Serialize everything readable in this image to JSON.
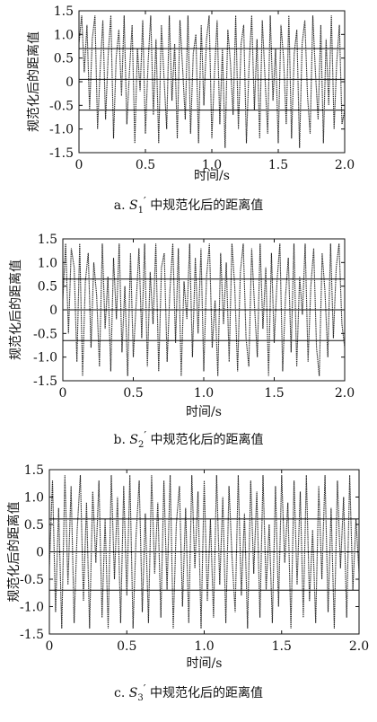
{
  "chart_data": [
    {
      "type": "line",
      "ylabel": "规范化后的距离值",
      "xlabel": "时间/s",
      "caption": {
        "prefix": "a.",
        "sym": "S",
        "sub": "1",
        "prime": "′",
        "text": "中规范化后的距离值"
      },
      "xlim": [
        0,
        2.0
      ],
      "ylim": [
        -1.5,
        1.5
      ],
      "xticks": [
        "0",
        "0.5",
        "1.0",
        "1.5",
        "2.0"
      ],
      "yticks": [
        "1.5",
        "1.0",
        "0.5",
        "0",
        "-0.5",
        "-1.0",
        "-1.5"
      ],
      "hlines": [
        0.7,
        0.05,
        -0.6
      ],
      "grid": false,
      "series": [
        {
          "x": [
            0,
            0.02,
            0.04,
            0.06,
            0.08,
            0.1,
            0.12,
            0.14,
            0.16,
            0.18,
            0.2,
            0.22,
            0.24,
            0.26,
            0.28,
            0.3,
            0.32,
            0.34,
            0.36,
            0.38,
            0.4,
            0.42,
            0.44,
            0.46,
            0.48,
            0.5,
            0.52,
            0.54,
            0.56,
            0.58,
            0.6,
            0.62,
            0.64,
            0.66,
            0.68,
            0.7,
            0.72,
            0.74,
            0.76,
            0.78,
            0.8,
            0.82,
            0.84,
            0.86,
            0.88,
            0.9,
            0.92,
            0.94,
            0.96,
            0.98,
            1.0,
            1.02,
            1.04,
            1.06,
            1.08,
            1.1,
            1.12,
            1.14,
            1.16,
            1.18,
            1.2,
            1.22,
            1.24,
            1.26,
            1.28,
            1.3,
            1.32,
            1.34,
            1.36,
            1.38,
            1.4,
            1.42,
            1.44,
            1.46,
            1.48,
            1.5,
            1.52,
            1.54,
            1.56,
            1.58,
            1.6,
            1.62,
            1.64,
            1.66,
            1.68,
            1.7,
            1.72,
            1.74,
            1.76,
            1.78,
            1.8,
            1.82,
            1.84,
            1.86,
            1.88,
            1.9,
            1.92,
            1.94,
            1.96,
            1.98,
            2.0
          ],
          "y": [
            0.8,
            1.4,
            0.2,
            1.2,
            -0.6,
            0.9,
            1.4,
            -1.0,
            0.3,
            1.3,
            -0.8,
            0.6,
            1.4,
            -1.2,
            0.5,
            1.1,
            -0.3,
            1.4,
            -0.9,
            0.2,
            1.2,
            -1.3,
            0.7,
            -0.2,
            1.3,
            -1.1,
            0.4,
            1.4,
            -0.7,
            0.9,
            -1.3,
            1.2,
            0.1,
            -1.0,
            1.4,
            -0.4,
            0.8,
            -1.2,
            1.3,
            0.3,
            -0.8,
            1.4,
            -1.1,
            0.6,
            1.0,
            -1.3,
            1.2,
            -0.5,
            0.9,
            1.4,
            -1.2,
            0.2,
            1.3,
            -0.9,
            0.7,
            -1.4,
            1.1,
            0.4,
            -0.7,
            1.4,
            -1.0,
            0.8,
            1.2,
            -1.3,
            0.3,
            1.4,
            -0.6,
            0.9,
            -1.2,
            1.3,
            0.1,
            -1.1,
            1.4,
            -0.4,
            0.7,
            -1.3,
            1.2,
            0.5,
            -0.9,
            1.4,
            -1.2,
            0.6,
            1.1,
            -1.4,
            0.8,
            1.3,
            -0.3,
            -1.1,
            1.4,
            0.2,
            -0.8,
            1.2,
            -1.3,
            0.9,
            -0.5,
            1.4,
            -1.0,
            0.4,
            1.2,
            -0.9,
            -0.6
          ]
        }
      ]
    },
    {
      "type": "line",
      "ylabel": "规范化后的距离值",
      "xlabel": "时间/s",
      "caption": {
        "prefix": "b.",
        "sym": "S",
        "sub": "2",
        "prime": "′",
        "text": "中规范化后的距离值"
      },
      "xlim": [
        0,
        2.0
      ],
      "ylim": [
        -1.5,
        1.5
      ],
      "xticks": [
        "0",
        "0.5",
        "1.0",
        "1.5",
        "2.0"
      ],
      "yticks": [
        "1.5",
        "1.0",
        "0.5",
        "0",
        "-0.5",
        "-1.0",
        "-1.5"
      ],
      "hlines": [
        0.65,
        0.0,
        -0.65
      ],
      "grid": false,
      "series": [
        {
          "x": [
            0,
            0.02,
            0.04,
            0.06,
            0.08,
            0.1,
            0.12,
            0.14,
            0.16,
            0.18,
            0.2,
            0.22,
            0.24,
            0.26,
            0.28,
            0.3,
            0.32,
            0.34,
            0.36,
            0.38,
            0.4,
            0.42,
            0.44,
            0.46,
            0.48,
            0.5,
            0.52,
            0.54,
            0.56,
            0.58,
            0.6,
            0.62,
            0.64,
            0.66,
            0.68,
            0.7,
            0.72,
            0.74,
            0.76,
            0.78,
            0.8,
            0.82,
            0.84,
            0.86,
            0.88,
            0.9,
            0.92,
            0.94,
            0.96,
            0.98,
            1.0,
            1.02,
            1.04,
            1.06,
            1.08,
            1.1,
            1.12,
            1.14,
            1.16,
            1.18,
            1.2,
            1.22,
            1.24,
            1.26,
            1.28,
            1.3,
            1.32,
            1.34,
            1.36,
            1.38,
            1.4,
            1.42,
            1.44,
            1.46,
            1.48,
            1.5,
            1.52,
            1.54,
            1.56,
            1.58,
            1.6,
            1.62,
            1.64,
            1.66,
            1.68,
            1.7,
            1.72,
            1.74,
            1.76,
            1.78,
            1.8,
            1.82,
            1.84,
            1.86,
            1.88,
            1.9,
            1.92,
            1.94,
            1.96,
            1.98,
            2.0
          ],
          "y": [
            0.2,
            1.4,
            -0.5,
            1.3,
            0.9,
            -1.1,
            1.4,
            -1.4,
            0.6,
            1.2,
            -0.8,
            1.0,
            0.3,
            -1.2,
            1.4,
            -0.4,
            0.7,
            -1.3,
            1.1,
            -0.2,
            1.4,
            -0.9,
            0.5,
            -1.4,
            1.2,
            -1.0,
            0.1,
            1.3,
            -0.6,
            1.4,
            -1.2,
            0.8,
            -0.3,
            1.4,
            -1.3,
            0.9,
            1.2,
            -1.1,
            0.4,
            1.4,
            -0.7,
            1.3,
            -1.4,
            0.6,
            -0.2,
            1.4,
            -1.0,
            1.1,
            -0.5,
            1.3,
            -1.3,
            0.7,
            1.4,
            -0.8,
            0.2,
            -1.4,
            1.2,
            -0.3,
            1.0,
            -1.1,
            1.4,
            0.5,
            -1.3,
            0.8,
            1.4,
            -0.6,
            -1.2,
            1.3,
            0.1,
            -1.0,
            1.4,
            -0.4,
            0.9,
            -1.4,
            1.2,
            -0.7,
            0.6,
            1.4,
            -1.3,
            0.3,
            1.1,
            -0.9,
            1.4,
            -1.2,
            0.7,
            -0.1,
            1.4,
            -1.1,
            0.5,
            1.3,
            -0.8,
            -1.4,
            1.2,
            0.4,
            -1.0,
            1.4,
            -0.6,
            0.9,
            1.4,
            -0.3,
            -0.8
          ]
        }
      ]
    },
    {
      "type": "line",
      "ylabel": "规范化后的距离值",
      "xlabel": "时间/s",
      "caption": {
        "prefix": "c.",
        "sym": "S",
        "sub": "3",
        "prime": "′",
        "text": "中规范化后的距离值"
      },
      "xlim": [
        0,
        2.0
      ],
      "ylim": [
        -1.5,
        1.5
      ],
      "xticks": [
        "0",
        "0.5",
        "1.0",
        "1.5",
        "2.0"
      ],
      "yticks": [
        "1.5",
        "1.0",
        "0.5",
        "0",
        "-0.5",
        "-1.0",
        "-1.5"
      ],
      "hlines": [
        0.6,
        0.0,
        -0.7
      ],
      "grid": false,
      "series": [
        {
          "x": [
            0,
            0.02,
            0.04,
            0.06,
            0.08,
            0.1,
            0.12,
            0.14,
            0.16,
            0.18,
            0.2,
            0.22,
            0.24,
            0.26,
            0.28,
            0.3,
            0.32,
            0.34,
            0.36,
            0.38,
            0.4,
            0.42,
            0.44,
            0.46,
            0.48,
            0.5,
            0.52,
            0.54,
            0.56,
            0.58,
            0.6,
            0.62,
            0.64,
            0.66,
            0.68,
            0.7,
            0.72,
            0.74,
            0.76,
            0.78,
            0.8,
            0.82,
            0.84,
            0.86,
            0.88,
            0.9,
            0.92,
            0.94,
            0.96,
            0.98,
            1.0,
            1.02,
            1.04,
            1.06,
            1.08,
            1.1,
            1.12,
            1.14,
            1.16,
            1.18,
            1.2,
            1.22,
            1.24,
            1.26,
            1.28,
            1.3,
            1.32,
            1.34,
            1.36,
            1.38,
            1.4,
            1.42,
            1.44,
            1.46,
            1.48,
            1.5,
            1.52,
            1.54,
            1.56,
            1.58,
            1.6,
            1.62,
            1.64,
            1.66,
            1.68,
            1.7,
            1.72,
            1.74,
            1.76,
            1.78,
            1.8,
            1.82,
            1.84,
            1.86,
            1.88,
            1.9,
            1.92,
            1.94,
            1.96,
            1.98,
            2.0
          ],
          "y": [
            -0.3,
            1.3,
            -1.1,
            0.8,
            -1.4,
            1.4,
            -0.6,
            1.2,
            -1.3,
            0.4,
            1.4,
            -0.9,
            0.9,
            -1.4,
            1.1,
            -0.2,
            1.3,
            -1.2,
            0.6,
            -1.4,
            1.4,
            -0.5,
            1.0,
            -1.3,
            1.2,
            -0.8,
            1.4,
            -1.4,
            0.3,
            1.3,
            -1.1,
            0.7,
            -1.3,
            1.4,
            -0.4,
            0.9,
            -1.2,
            1.3,
            -0.7,
            1.4,
            -1.4,
            0.5,
            1.2,
            -1.0,
            0.8,
            -1.3,
            1.4,
            -0.3,
            1.1,
            -1.4,
            1.3,
            -0.9,
            0.6,
            -1.2,
            1.4,
            -0.6,
            1.0,
            -1.3,
            1.2,
            -0.1,
            -1.1,
            1.4,
            -0.8,
            0.7,
            -1.4,
            1.3,
            -0.4,
            1.1,
            -1.2,
            1.4,
            -0.7,
            0.5,
            -1.3,
            1.2,
            -1.0,
            1.4,
            -0.2,
            0.9,
            -1.4,
            1.3,
            -0.6,
            1.1,
            -1.2,
            1.4,
            -0.9,
            0.4,
            -1.3,
            1.2,
            -0.5,
            1.4,
            -1.1,
            0.8,
            -1.4,
            1.3,
            -0.3,
            1.0,
            -1.2,
            1.4,
            -0.7,
            0.6,
            -0.4
          ]
        }
      ]
    }
  ]
}
